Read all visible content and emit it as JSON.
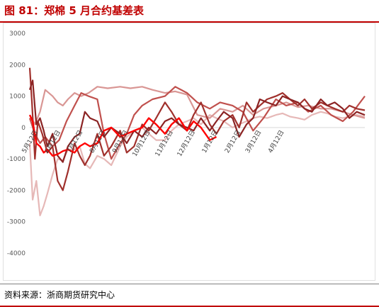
{
  "header": {
    "title": "图 81：郑棉 5 月合约基差表"
  },
  "footer": {
    "source": "资料来源：浙商期货研究中心"
  },
  "chart_data": {
    "type": "line",
    "title": "",
    "xlabel": "",
    "ylabel": "",
    "ylim": [
      -4000,
      3000
    ],
    "yticks": [
      3000,
      2000,
      1000,
      0,
      -1000,
      -2000,
      -3000,
      -4000
    ],
    "grid": false,
    "legend": "none",
    "xlim": [
      "05-01",
      "07-31"
    ],
    "xticks": [
      "5月12日",
      "6月12日",
      "7月12日",
      "8月12日",
      "9月12日",
      "10月12日",
      "11月12日",
      "12月12日",
      "1月12日",
      "2月12日",
      "3月12日",
      "4月12日"
    ],
    "series": [
      {
        "color": "#e6b8b7",
        "x": [
          "05-01",
          "05-05",
          "05-10",
          "05-15",
          "05-20",
          "05-25",
          "06-01",
          "06-08",
          "06-15",
          "06-22",
          "07-01",
          "07-08",
          "07-15",
          "07-22",
          "08-01",
          "08-10",
          "08-20",
          "09-01",
          "09-10",
          "09-20",
          "10-01",
          "10-10",
          "10-20",
          "11-01",
          "11-10",
          "11-20",
          "12-01",
          "12-10",
          "12-20",
          "01-01",
          "01-10",
          "01-20",
          "02-01",
          "02-10",
          "02-20",
          "03-01",
          "03-10",
          "03-20",
          "04-01",
          "04-10",
          "04-20",
          "05-01",
          "05-10",
          "05-20",
          "06-01",
          "06-10",
          "06-20",
          "07-01",
          "07-10",
          "07-20",
          "07-31"
        ],
        "values": [
          -500,
          -2300,
          -1700,
          -2800,
          -2500,
          -2100,
          -1500,
          -1000,
          -1050,
          -700,
          -700,
          -600,
          -1150,
          -1300,
          -900,
          -1000,
          -1200,
          -600,
          -300,
          -100,
          0,
          -200,
          -400,
          -400,
          -100,
          100,
          200,
          300,
          100,
          400,
          300,
          200,
          0,
          100,
          200,
          300,
          350,
          300,
          400,
          450,
          350,
          300,
          250,
          400,
          500,
          450,
          350,
          300,
          350,
          400,
          350
        ]
      },
      {
        "color": "#d99694",
        "x": [
          "05-01",
          "05-08",
          "05-15",
          "05-22",
          "06-01",
          "06-08",
          "06-15",
          "06-22",
          "07-01",
          "07-10",
          "07-20",
          "08-01",
          "08-15",
          "09-01",
          "09-15",
          "10-01",
          "10-15",
          "11-01",
          "11-15",
          "12-01",
          "12-15",
          "01-01",
          "01-15",
          "02-01",
          "02-15",
          "03-01",
          "03-15",
          "04-01",
          "04-15",
          "05-01",
          "05-15",
          "06-01",
          "06-15",
          "07-01",
          "07-15",
          "07-31"
        ],
        "values": [
          400,
          100,
          500,
          1200,
          1000,
          800,
          700,
          900,
          1100,
          1000,
          1100,
          1300,
          1250,
          1300,
          1250,
          1300,
          1200,
          1100,
          1150,
          1050,
          400,
          300,
          600,
          500,
          700,
          400,
          600,
          700,
          800,
          650,
          700,
          600,
          600,
          500,
          400,
          300
        ]
      },
      {
        "color": "#c0504d",
        "x": [
          "05-01",
          "05-08",
          "05-15",
          "05-22",
          "06-01",
          "06-10",
          "06-20",
          "07-01",
          "07-10",
          "07-20",
          "08-01",
          "08-10",
          "08-20",
          "09-01",
          "09-10",
          "09-20",
          "10-01",
          "10-15",
          "11-01",
          "11-15",
          "12-01",
          "12-15",
          "01-01",
          "01-15",
          "02-01",
          "02-15",
          "03-01",
          "03-15",
          "04-01",
          "04-15",
          "05-01",
          "05-15",
          "06-01",
          "06-15",
          "07-01",
          "07-15",
          "07-31"
        ],
        "values": [
          300,
          -200,
          -500,
          -300,
          -600,
          -400,
          200,
          700,
          1100,
          1000,
          900,
          -200,
          -1000,
          -500,
          -200,
          400,
          700,
          900,
          1000,
          1300,
          1100,
          800,
          600,
          800,
          700,
          500,
          -100,
          300,
          900,
          700,
          800,
          500,
          700,
          400,
          200,
          500,
          1000
        ]
      },
      {
        "color": "#a0302c",
        "x": [
          "05-01",
          "05-04",
          "05-08",
          "05-12",
          "05-18",
          "05-25",
          "06-01",
          "06-08",
          "06-15",
          "06-22",
          "07-01",
          "07-08",
          "07-15",
          "07-22",
          "08-01",
          "08-10",
          "08-20",
          "09-01",
          "09-10",
          "09-20",
          "10-01",
          "10-10",
          "10-20",
          "11-01",
          "11-10",
          "11-20",
          "12-01",
          "12-10",
          "12-20",
          "01-01",
          "01-10",
          "01-20",
          "02-01",
          "02-10",
          "02-20",
          "03-01",
          "03-10",
          "03-20",
          "04-01",
          "04-10",
          "04-20",
          "05-01",
          "05-10",
          "05-20",
          "06-01",
          "06-10",
          "06-20",
          "07-01",
          "07-10",
          "07-20",
          "07-31"
        ],
        "values": [
          1900,
          800,
          -1000,
          200,
          -200,
          -800,
          -600,
          -1700,
          -2000,
          -1400,
          -500,
          -900,
          -1200,
          -900,
          -200,
          -900,
          -600,
          -100,
          -800,
          -600,
          100,
          -100,
          300,
          800,
          500,
          100,
          -100,
          400,
          800,
          100,
          -200,
          200,
          400,
          0,
          800,
          500,
          700,
          900,
          1000,
          1100,
          900,
          700,
          900,
          600,
          800,
          700,
          600,
          500,
          700,
          600,
          550
        ]
      },
      {
        "color": "#8b2323",
        "x": [
          "05-01",
          "05-05",
          "05-10",
          "05-15",
          "05-20",
          "05-25",
          "06-01",
          "06-08",
          "06-15",
          "06-22",
          "07-01",
          "07-08",
          "07-15",
          "07-22",
          "08-01",
          "08-10",
          "08-20",
          "09-01",
          "09-10",
          "09-20",
          "10-01",
          "10-10",
          "10-20",
          "11-01",
          "11-10",
          "11-20",
          "12-01",
          "12-10",
          "12-20",
          "01-01",
          "01-10",
          "01-20",
          "02-01",
          "02-10",
          "02-20",
          "03-01",
          "03-10",
          "03-20",
          "04-01",
          "04-10",
          "04-20",
          "05-01",
          "05-10",
          "05-20",
          "06-01",
          "06-10",
          "06-20",
          "07-01",
          "07-10",
          "07-20",
          "07-31"
        ],
        "values": [
          1200,
          1500,
          100,
          300,
          -100,
          -600,
          -200,
          -900,
          -1100,
          -600,
          -300,
          -200,
          500,
          300,
          200,
          -300,
          0,
          -200,
          -500,
          -100,
          -300,
          0,
          -200,
          200,
          300,
          100,
          0,
          -100,
          300,
          -100,
          200,
          500,
          300,
          -300,
          100,
          300,
          900,
          800,
          700,
          1000,
          900,
          800,
          600,
          500,
          900,
          700,
          800,
          600,
          300,
          500,
          400
        ]
      },
      {
        "color": "#ff0000",
        "x": [
          "05-01",
          "05-05",
          "05-10",
          "05-15",
          "05-20",
          "05-25",
          "06-01",
          "06-08",
          "06-15",
          "06-22",
          "07-01",
          "07-08",
          "07-15",
          "07-22",
          "08-01",
          "08-10",
          "08-20",
          "09-01",
          "09-10",
          "09-20",
          "10-01",
          "10-10",
          "10-20",
          "11-01",
          "11-10",
          "11-20",
          "12-01",
          "12-10",
          "12-20",
          "01-01",
          "01-10"
        ],
        "values": [
          400,
          200,
          -500,
          -600,
          -800,
          -700,
          -900,
          -850,
          -750,
          -700,
          -800,
          -600,
          -500,
          -600,
          -500,
          -100,
          0,
          -300,
          -200,
          -100,
          0,
          300,
          100,
          -200,
          100,
          300,
          -100,
          200,
          0,
          -400,
          -300
        ]
      }
    ]
  }
}
